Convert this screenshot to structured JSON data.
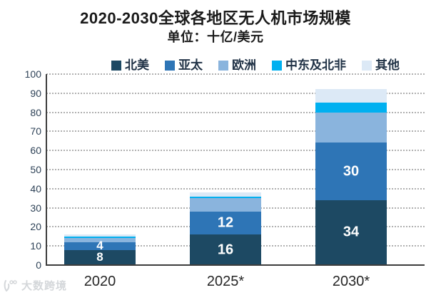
{
  "header": {
    "title": "2020-2030全球各地区无人机市场规模",
    "subtitle": "单位：十亿/美元"
  },
  "watermark": {
    "text": "大数跨境"
  },
  "chart_data": {
    "type": "bar",
    "stacked": true,
    "title": "2020-2030全球各地区无人机市场规模",
    "unit_label": "单位：十亿/美元",
    "categories": [
      "2020",
      "2025*",
      "2030*"
    ],
    "series": [
      {
        "name": "北美",
        "color": "#1d4963",
        "values": [
          8,
          16,
          34
        ],
        "show_value_labels": true
      },
      {
        "name": "亚太",
        "color": "#2e75b6",
        "values": [
          4,
          12,
          30
        ],
        "show_value_labels": true
      },
      {
        "name": "欧洲",
        "color": "#8ab4dd",
        "values": [
          2,
          7,
          16
        ],
        "show_value_labels": false
      },
      {
        "name": "中东及北非",
        "color": "#00b0f0",
        "values": [
          1,
          1,
          5
        ],
        "show_value_labels": false
      },
      {
        "name": "其他",
        "color": "#dce9f6",
        "values": [
          1,
          2,
          7
        ],
        "show_value_labels": false
      }
    ],
    "totals": [
      16,
      38,
      92
    ],
    "ylim": [
      0,
      100
    ],
    "y_tick_step": 10,
    "y_ticks": [
      0,
      10,
      20,
      30,
      40,
      50,
      60,
      70,
      80,
      90,
      100
    ],
    "grid": "dotted-horizontal",
    "legend_position": "top",
    "value_label_color": "#ffffff",
    "axis_color": "#3d3d3d",
    "tick_label_color": "#2e4257"
  }
}
